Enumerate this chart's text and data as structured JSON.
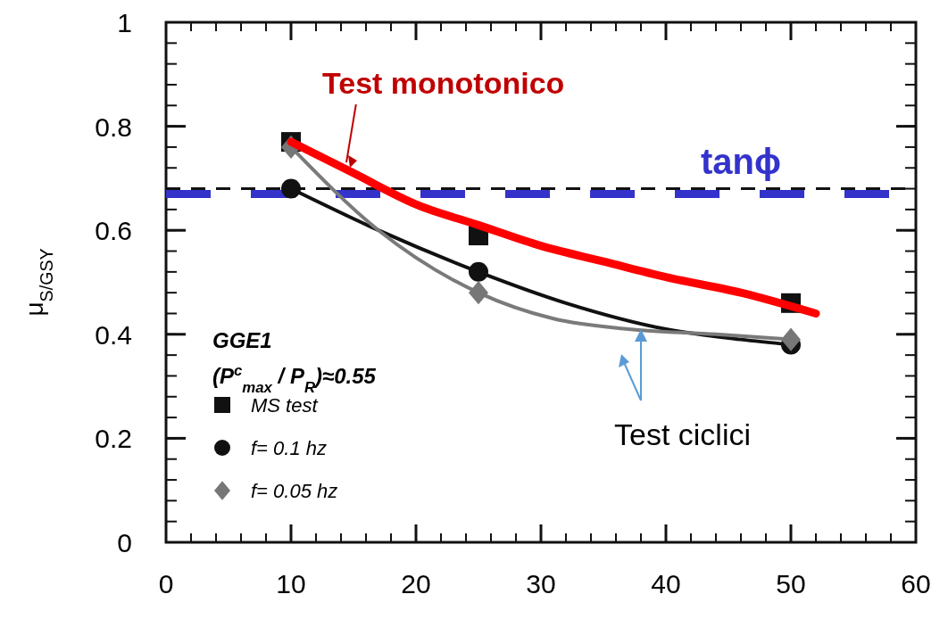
{
  "chart_data": {
    "type": "line",
    "ylabel": "μ$_{S/GSY}$",
    "legend_title": "GGE1",
    "xlim": [
      0,
      60
    ],
    "xticks": [
      0,
      10,
      20,
      30,
      40,
      50,
      60
    ],
    "ylim": [
      0,
      1
    ],
    "yticks": [
      0,
      0.2,
      0.4,
      0.6,
      0.8,
      1
    ],
    "grid": false,
    "legend": "bottom left",
    "series": [
      {
        "name": "MS test",
        "type": "scatter",
        "marker": "square",
        "color": "#111111",
        "x": [
          10,
          25,
          50
        ],
        "values": [
          0.77,
          0.59,
          0.46
        ]
      },
      {
        "name": "f= 0.1 hz",
        "type": "scatter",
        "marker": "circle",
        "color": "#111111",
        "x": [
          10,
          25,
          50
        ],
        "values": [
          0.68,
          0.52,
          0.38
        ]
      },
      {
        "name": "f= 0.05 hz",
        "type": "scatter",
        "marker": "diamond",
        "color": "#777777",
        "x": [
          10,
          25,
          50
        ],
        "values": [
          0.76,
          0.48,
          0.39
        ]
      },
      {
        "color": "#111111",
        "x": [
          10,
          17,
          25,
          32,
          40,
          46,
          50
        ],
        "values": [
          0.68,
          0.6,
          0.52,
          0.46,
          0.41,
          0.39,
          0.38
        ]
      },
      {
        "color": "#7a7a7a",
        "x": [
          10,
          17,
          25,
          31,
          37,
          44,
          50
        ],
        "values": [
          0.76,
          0.6,
          0.48,
          0.43,
          0.41,
          0.4,
          0.39
        ]
      },
      {
        "name": "Test monotonico",
        "color": "#ff0000",
        "x": [
          10,
          15,
          20,
          25,
          30,
          35,
          40,
          46,
          52
        ],
        "values": [
          0.77,
          0.71,
          0.65,
          0.61,
          0.57,
          0.54,
          0.51,
          0.48,
          0.44
        ]
      }
    ],
    "ref_lines": [
      {
        "axis": "y",
        "value": 0.68,
        "color": "#111111",
        "line_style": "dashed"
      },
      {
        "axis": "y",
        "value": 0.67,
        "label": "tanϕ",
        "color": "#3333cc",
        "line_style": "dashed"
      }
    ],
    "annotations": [
      "(P$^{c}$$_{max}$ / P$_{R}$)≈0.55",
      {
        "text": "Test ciclici",
        "x": 38,
        "y": 0.41
      }
    ]
  }
}
